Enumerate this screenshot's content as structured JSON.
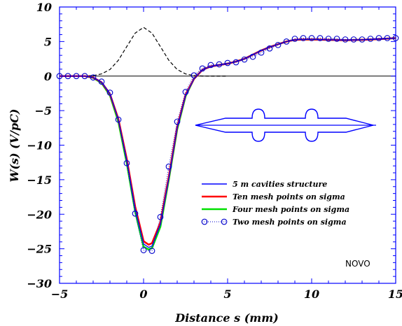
{
  "chart_data": {
    "type": "line",
    "xlabel": "Distance s (mm)",
    "ylabel": "W(s) (V/pC)",
    "xlim": [
      -5,
      15
    ],
    "ylim": [
      -30,
      10
    ],
    "xticks": [
      -5,
      0,
      5,
      10,
      15
    ],
    "yticks": [
      10,
      5,
      0,
      -5,
      -10,
      -15,
      -20,
      -25,
      -30
    ],
    "xtick_labels": [
      "−5",
      "0",
      "5",
      "10",
      "15"
    ],
    "ytick_labels": [
      "10",
      "5",
      "0",
      "−5",
      "−10",
      "−15",
      "−20",
      "−25",
      "−30"
    ],
    "annotation": "NOVO",
    "grid": false,
    "legend_position": "center-right",
    "series": [
      {
        "name": "5 m cavities structure",
        "color": "#0000ff",
        "style": "solid",
        "x": [
          -5,
          -4,
          -3.5,
          -3,
          -2.5,
          -2,
          -1.5,
          -1,
          -0.5,
          0,
          0.3,
          0.5,
          1,
          1.5,
          2,
          2.5,
          3,
          3.5,
          4,
          4.5,
          5,
          5.5,
          6,
          6.5,
          7,
          7.5,
          8,
          8.5,
          9,
          9.5,
          10,
          11,
          12,
          13,
          14,
          15
        ],
        "y": [
          0,
          0,
          0,
          -0.2,
          -0.9,
          -2.6,
          -6.3,
          -12.2,
          -19.2,
          -24.3,
          -24.8,
          -24.6,
          -21.5,
          -14.8,
          -7.5,
          -2.8,
          -0.4,
          0.9,
          1.4,
          1.6,
          1.8,
          2.1,
          2.5,
          3.1,
          3.7,
          4.2,
          4.6,
          5.0,
          5.25,
          5.3,
          5.3,
          5.25,
          5.2,
          5.25,
          5.35,
          5.5
        ]
      },
      {
        "name": "Ten mesh points on sigma",
        "color": "#ff0000",
        "style": "solid",
        "x": [
          -5,
          -4,
          -3.5,
          -3,
          -2.5,
          -2,
          -1.5,
          -1,
          -0.5,
          0,
          0.3,
          0.5,
          1,
          1.5,
          2,
          2.5,
          3,
          3.5,
          4,
          4.5,
          5,
          5.5,
          6,
          6.5,
          7,
          7.5,
          8,
          8.5,
          9,
          9.5,
          10,
          11,
          12,
          13,
          14,
          15
        ],
        "y": [
          0,
          0,
          0,
          -0.2,
          -0.9,
          -2.6,
          -6.2,
          -12.0,
          -18.9,
          -23.9,
          -24.4,
          -24.2,
          -21.2,
          -14.6,
          -7.4,
          -2.7,
          -0.4,
          0.9,
          1.4,
          1.6,
          1.8,
          2.1,
          2.5,
          3.1,
          3.7,
          4.2,
          4.6,
          5.0,
          5.25,
          5.3,
          5.3,
          5.25,
          5.2,
          5.25,
          5.35,
          5.5
        ]
      },
      {
        "name": "Four mesh points on sigma",
        "color": "#00e000",
        "style": "solid",
        "x": [
          -5,
          -4,
          -3.5,
          -3,
          -2.5,
          -2,
          -1.5,
          -1,
          -0.5,
          0,
          0.3,
          0.5,
          1,
          1.5,
          2,
          2.5,
          3,
          3.5,
          4,
          4.5,
          5,
          5.5,
          6,
          6.5,
          7,
          7.5,
          8,
          8.5,
          9,
          9.5,
          10,
          11,
          12,
          13,
          14,
          15
        ],
        "y": [
          0,
          0,
          0,
          -0.25,
          -1.0,
          -2.8,
          -6.6,
          -12.6,
          -19.6,
          -24.7,
          -25.1,
          -24.9,
          -21.8,
          -15.0,
          -7.7,
          -2.9,
          -0.4,
          0.9,
          1.4,
          1.6,
          1.8,
          2.1,
          2.5,
          3.1,
          3.7,
          4.2,
          4.6,
          5.0,
          5.25,
          5.3,
          5.3,
          5.25,
          5.2,
          5.25,
          5.35,
          5.5
        ]
      },
      {
        "name": "Two mesh points on sigma",
        "color": "#0000cc",
        "style": "dotted-circles",
        "x": [
          -5,
          -4.5,
          -4,
          -3.5,
          -3,
          -2.5,
          -2,
          -1.5,
          -1,
          -0.5,
          0,
          0.5,
          1,
          1.5,
          2,
          2.5,
          3,
          3.5,
          4,
          4.5,
          5,
          5.5,
          6,
          6.5,
          7,
          7.5,
          8,
          8.5,
          9,
          9.5,
          10,
          10.5,
          11,
          11.5,
          12,
          12.5,
          13,
          13.5,
          14,
          14.5,
          15
        ],
        "y": [
          0,
          0,
          0,
          0,
          -0.2,
          -0.8,
          -2.4,
          -6.3,
          -12.6,
          -19.9,
          -25.2,
          -25.3,
          -20.4,
          -13.1,
          -6.6,
          -2.3,
          0.1,
          1.1,
          1.6,
          1.7,
          1.9,
          2.0,
          2.4,
          2.8,
          3.4,
          4.0,
          4.5,
          5.0,
          5.4,
          5.5,
          5.5,
          5.5,
          5.4,
          5.4,
          5.3,
          5.3,
          5.3,
          5.4,
          5.5,
          5.5,
          5.5
        ]
      },
      {
        "name": "",
        "color": "#000000",
        "style": "dashed",
        "x": [
          -5,
          -4,
          -3.5,
          -3,
          -2.5,
          -2,
          -1.5,
          -1,
          -0.5,
          0,
          0.5,
          1,
          1.5,
          2,
          2.5,
          3,
          3.5,
          4,
          5
        ],
        "y": [
          0,
          0,
          0.01,
          0.08,
          0.31,
          0.95,
          2.29,
          4.27,
          6.22,
          7.05,
          6.22,
          4.27,
          2.29,
          0.95,
          0.31,
          0.08,
          0.01,
          0,
          0
        ]
      }
    ]
  }
}
